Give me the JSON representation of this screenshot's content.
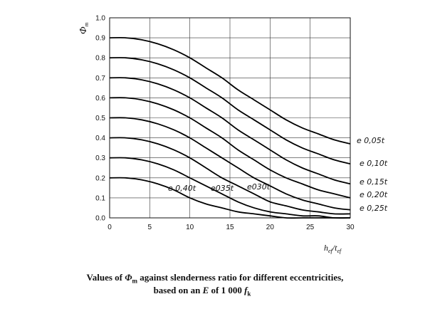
{
  "chart_data": {
    "type": "line",
    "ylabel_main": "Φ",
    "ylabel_sub": "m",
    "xlabel_main_h": "h",
    "xlabel_sub_ef1": "ef",
    "xlabel_slash_t": "/t",
    "xlabel_sub_ef2": "ef",
    "xlim": [
      0,
      30
    ],
    "ylim": [
      0,
      1.0
    ],
    "x_ticks": [
      "0",
      "5",
      "10",
      "15",
      "20",
      "25",
      "30"
    ],
    "y_ticks": [
      "0.0",
      "0.1",
      "0.2",
      "0.3",
      "0.4",
      "0.5",
      "0.6",
      "0.7",
      "0.8",
      "0.9",
      "1.0"
    ],
    "grid": true,
    "x": [
      0,
      2,
      4,
      6,
      8,
      10,
      12,
      14,
      16,
      18,
      20,
      22,
      24,
      26,
      28,
      30
    ],
    "series": [
      {
        "name": "e 0,05t",
        "values": [
          0.9,
          0.9,
          0.89,
          0.87,
          0.84,
          0.8,
          0.75,
          0.7,
          0.64,
          0.59,
          0.54,
          0.49,
          0.45,
          0.42,
          0.39,
          0.37
        ]
      },
      {
        "name": "e 0,10t",
        "values": [
          0.8,
          0.8,
          0.79,
          0.77,
          0.74,
          0.7,
          0.65,
          0.6,
          0.54,
          0.49,
          0.44,
          0.39,
          0.35,
          0.32,
          0.29,
          0.27
        ]
      },
      {
        "name": "e 0,15t",
        "values": [
          0.7,
          0.7,
          0.69,
          0.67,
          0.64,
          0.6,
          0.55,
          0.5,
          0.44,
          0.39,
          0.34,
          0.29,
          0.25,
          0.22,
          0.19,
          0.17
        ]
      },
      {
        "name": "e 0,20t",
        "values": [
          0.6,
          0.6,
          0.59,
          0.57,
          0.54,
          0.5,
          0.45,
          0.4,
          0.34,
          0.29,
          0.24,
          0.2,
          0.17,
          0.14,
          0.12,
          0.1
        ]
      },
      {
        "name": "e 0,25t",
        "values": [
          0.5,
          0.5,
          0.49,
          0.47,
          0.44,
          0.4,
          0.35,
          0.3,
          0.25,
          0.2,
          0.16,
          0.12,
          0.09,
          0.07,
          0.05,
          0.04
        ]
      },
      {
        "name": "e 0,30t",
        "values": [
          0.4,
          0.4,
          0.39,
          0.37,
          0.34,
          0.3,
          0.25,
          0.2,
          0.16,
          0.12,
          0.08,
          0.06,
          0.04,
          0.03,
          0.02,
          0.02
        ]
      },
      {
        "name": "e 0,35t",
        "values": [
          0.3,
          0.3,
          0.29,
          0.27,
          0.24,
          0.2,
          0.16,
          0.12,
          0.08,
          0.05,
          0.03,
          0.02,
          0.01,
          0.01,
          0.0,
          0.0
        ]
      },
      {
        "name": "e 0,40t",
        "values": [
          0.2,
          0.2,
          0.19,
          0.17,
          0.14,
          0.1,
          0.07,
          0.05,
          0.03,
          0.02,
          0.01,
          0.0,
          0.0,
          0.0,
          0.0,
          0.0
        ]
      }
    ],
    "right_labels": [
      "e 0,05t",
      "e 0,10t",
      "e 0,15t",
      "e 0,20t",
      "e 0,25t"
    ],
    "inline_labels": [
      "e 0,40t",
      "e035t",
      "e030t"
    ]
  },
  "caption": {
    "line1_prefix": "Values of ",
    "line1_symbol": "Φ",
    "line1_symbol_sub": "m",
    "line1_suffix": " against slenderness ratio for different eccentricities,",
    "line2_prefix": "based on an ",
    "line2_E": "E",
    "line2_mid": " of 1 000 ",
    "line2_f": "f",
    "line2_f_sub": "k"
  }
}
